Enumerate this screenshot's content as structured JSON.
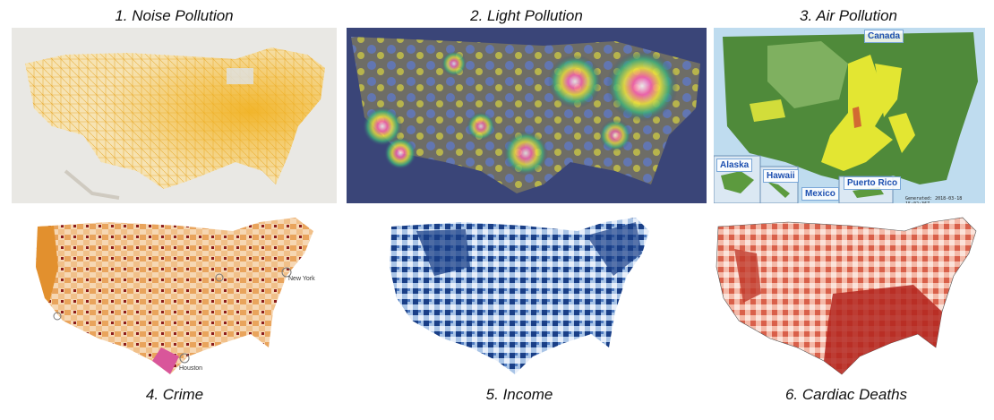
{
  "panels": [
    {
      "caption": "1. Noise Pollution"
    },
    {
      "caption": "2. Light Pollution"
    },
    {
      "caption": "3. Air Pollution",
      "labels": {
        "canada": "Canada",
        "alaska": "Alaska",
        "hawaii": "Hawaii",
        "mexico": "Mexico",
        "puerto_rico": "Puerto Rico",
        "generated": "Generated: 2018-03-18 15:02:36Z"
      }
    },
    {
      "caption": "4. Crime",
      "labels": {
        "new_york": "New York",
        "houston": "Houston"
      }
    },
    {
      "caption": "5. Income"
    },
    {
      "caption": "6. Cardiac Deaths"
    }
  ],
  "colors": {
    "noise": "#e8a41a",
    "light_bg": "#3a4578",
    "air_green": "#4f8a3a",
    "air_yellow": "#e3e632",
    "crime": "#e2902e",
    "income": "#1a3f87",
    "cardiac": "#b3261e"
  }
}
